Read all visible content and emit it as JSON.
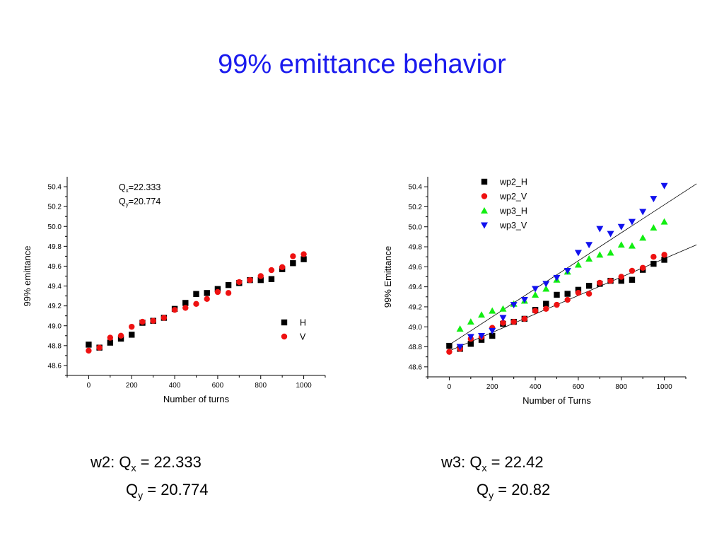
{
  "slide": {
    "title": "99% emittance behavior"
  },
  "colors": {
    "title": "#1a1aee",
    "H": "#000000",
    "V": "#ee1111",
    "wp3_H": "#11ee11",
    "wp3_V": "#1111ee"
  },
  "chart_data": [
    {
      "type": "scatter",
      "xlabel": "Number of turns",
      "ylabel": "99% emittance",
      "xlim": [
        -100,
        1100
      ],
      "ylim": [
        48.5,
        50.5
      ],
      "xticks": [
        "0",
        "200",
        "400",
        "600",
        "800",
        "1000"
      ],
      "yticks": [
        "48.6",
        "48.8",
        "49.0",
        "49.2",
        "49.4",
        "49.6",
        "49.8",
        "50.0",
        "50.2",
        "50.4"
      ],
      "annotation": {
        "q": "Q",
        "x_sub": "x",
        "x_val": "=22.333",
        "y_sub": "y",
        "y_val": "=20.774"
      },
      "legend_position": "right",
      "series": [
        {
          "name": "H",
          "marker": "square",
          "color": "#000000",
          "x": [
            0,
            50,
            100,
            150,
            200,
            250,
            300,
            350,
            400,
            450,
            500,
            550,
            600,
            650,
            700,
            750,
            800,
            850,
            900,
            950,
            1000
          ],
          "y": [
            48.81,
            48.78,
            48.83,
            48.87,
            48.91,
            49.03,
            49.05,
            49.08,
            49.17,
            49.23,
            49.32,
            49.33,
            49.37,
            49.41,
            49.43,
            49.46,
            49.46,
            49.47,
            49.57,
            49.63,
            49.67
          ]
        },
        {
          "name": "V",
          "marker": "circle",
          "color": "#ee1111",
          "x": [
            0,
            50,
            100,
            150,
            200,
            250,
            300,
            350,
            400,
            450,
            500,
            550,
            600,
            650,
            700,
            750,
            800,
            850,
            900,
            950,
            1000
          ],
          "y": [
            48.75,
            48.78,
            48.88,
            48.9,
            48.99,
            49.04,
            49.05,
            49.08,
            49.16,
            49.18,
            49.22,
            49.27,
            49.34,
            49.33,
            49.44,
            49.46,
            49.5,
            49.56,
            49.59,
            49.7,
            49.72
          ]
        }
      ]
    },
    {
      "type": "scatter",
      "xlabel": "Number of Turns",
      "ylabel": "99% Emittance",
      "xlim": [
        -100,
        1100
      ],
      "ylim": [
        48.5,
        50.5
      ],
      "xticks": [
        "0",
        "200",
        "400",
        "600",
        "800",
        "1000"
      ],
      "yticks": [
        "48.6",
        "48.8",
        "49.0",
        "49.2",
        "49.4",
        "49.6",
        "49.8",
        "50.0",
        "50.2",
        "50.4"
      ],
      "legend_position": "top",
      "fit_lines": [
        {
          "x": [
            0,
            1150
          ],
          "y": [
            48.82,
            50.43
          ]
        },
        {
          "x": [
            0,
            1150
          ],
          "y": [
            48.76,
            49.82
          ]
        }
      ],
      "series": [
        {
          "name": "wp2_H",
          "marker": "square",
          "color": "#000000",
          "x": [
            0,
            50,
            100,
            150,
            200,
            250,
            300,
            350,
            400,
            450,
            500,
            550,
            600,
            650,
            700,
            750,
            800,
            850,
            900,
            950,
            1000
          ],
          "y": [
            48.81,
            48.78,
            48.83,
            48.87,
            48.91,
            49.03,
            49.05,
            49.08,
            49.17,
            49.23,
            49.32,
            49.33,
            49.37,
            49.41,
            49.43,
            49.46,
            49.46,
            49.47,
            49.57,
            49.63,
            49.67
          ]
        },
        {
          "name": "wp2_V",
          "marker": "circle",
          "color": "#ee1111",
          "x": [
            0,
            50,
            100,
            150,
            200,
            250,
            300,
            350,
            400,
            450,
            500,
            550,
            600,
            650,
            700,
            750,
            800,
            850,
            900,
            950,
            1000
          ],
          "y": [
            48.75,
            48.78,
            48.88,
            48.9,
            48.99,
            49.04,
            49.05,
            49.08,
            49.16,
            49.18,
            49.22,
            49.27,
            49.34,
            49.33,
            49.44,
            49.46,
            49.5,
            49.56,
            49.59,
            49.7,
            49.72
          ]
        },
        {
          "name": "wp3_H",
          "marker": "triangle-up",
          "color": "#11ee11",
          "x": [
            50,
            100,
            150,
            200,
            250,
            300,
            350,
            400,
            450,
            500,
            550,
            600,
            650,
            700,
            750,
            800,
            850,
            900,
            950,
            1000
          ],
          "y": [
            48.98,
            49.05,
            49.12,
            49.16,
            49.18,
            49.23,
            49.26,
            49.32,
            49.38,
            49.47,
            49.55,
            49.62,
            49.68,
            49.72,
            49.74,
            49.82,
            49.81,
            49.89,
            49.99,
            50.05
          ]
        },
        {
          "name": "wp3_V",
          "marker": "triangle-down",
          "color": "#1111ee",
          "x": [
            50,
            100,
            150,
            200,
            250,
            300,
            350,
            400,
            450,
            500,
            550,
            600,
            650,
            700,
            750,
            800,
            850,
            900,
            950,
            1000
          ],
          "y": [
            48.8,
            48.9,
            48.91,
            48.96,
            49.09,
            49.22,
            49.27,
            49.38,
            49.43,
            49.49,
            49.56,
            49.74,
            49.82,
            49.98,
            49.93,
            50.0,
            50.05,
            50.15,
            50.28,
            50.41
          ]
        }
      ]
    }
  ],
  "tunes": {
    "left": {
      "prefix": "w2: Q",
      "x_sub": "x",
      "x_value": " = 22.333",
      "q": "Q",
      "y_sub": "y",
      "y_value": " = 20.774"
    },
    "right": {
      "prefix": "w3: Q",
      "x_sub": "x",
      "x_value": " = 22.42",
      "q": "Q",
      "y_sub": "y",
      "y_value": " = 20.82"
    }
  }
}
